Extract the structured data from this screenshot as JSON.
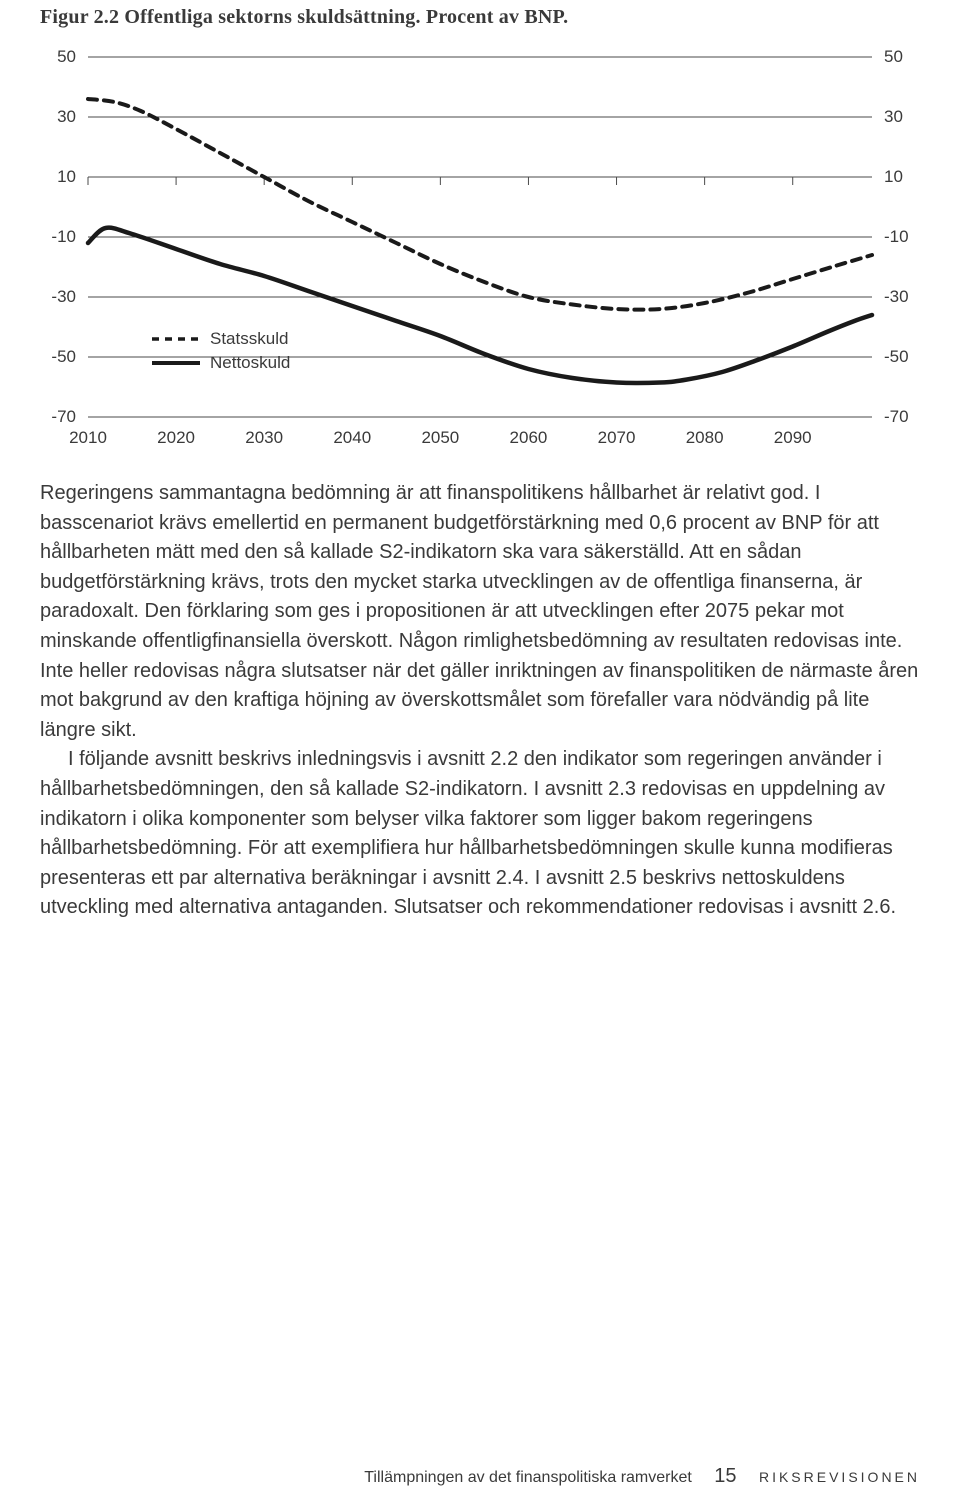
{
  "figure": {
    "title": "Figur 2.2 Offentliga sektorns skuldsättning. Procent av BNP.",
    "type": "line",
    "x_ticks": [
      2010,
      2020,
      2030,
      2040,
      2050,
      2060,
      2070,
      2080,
      2090
    ],
    "y_ticks": [
      50,
      30,
      10,
      -10,
      -30,
      -50,
      -70
    ],
    "xlim": [
      2010,
      2099
    ],
    "ylim": [
      -70,
      50
    ],
    "gridline_color": "#4a4a4a",
    "tick_color": "#4a4a4a",
    "text_color": "#3a3a3a",
    "background_color": "#ffffff",
    "tick_fontsize": 17,
    "tick_length": 8,
    "line_width_solid": 4.5,
    "line_width_dashed": 4,
    "dash_pattern": "9 7",
    "legend": {
      "items": [
        {
          "label": "Statsskuld",
          "style": "dashed",
          "color": "#1a1a1a"
        },
        {
          "label": "Nettoskuld",
          "style": "solid",
          "color": "#1a1a1a"
        }
      ],
      "fontsize": 17,
      "x": 112,
      "y_top": 290
    },
    "series": [
      {
        "name": "Statsskuld",
        "style": "dashed",
        "color": "#1a1a1a",
        "points": [
          [
            2010,
            36
          ],
          [
            2013,
            35
          ],
          [
            2016,
            32
          ],
          [
            2020,
            26
          ],
          [
            2025,
            18
          ],
          [
            2030,
            10
          ],
          [
            2035,
            2
          ],
          [
            2040,
            -5
          ],
          [
            2045,
            -12
          ],
          [
            2050,
            -19
          ],
          [
            2055,
            -25
          ],
          [
            2060,
            -30
          ],
          [
            2065,
            -32.5
          ],
          [
            2070,
            -34
          ],
          [
            2075,
            -34
          ],
          [
            2080,
            -32
          ],
          [
            2085,
            -28.5
          ],
          [
            2090,
            -24
          ],
          [
            2095,
            -19.5
          ],
          [
            2099,
            -16
          ]
        ]
      },
      {
        "name": "Nettoskuld",
        "style": "solid",
        "color": "#1a1a1a",
        "points": [
          [
            2010,
            -12
          ],
          [
            2012,
            -7
          ],
          [
            2015,
            -9
          ],
          [
            2020,
            -14
          ],
          [
            2025,
            -19
          ],
          [
            2030,
            -23
          ],
          [
            2035,
            -28
          ],
          [
            2040,
            -33
          ],
          [
            2045,
            -38
          ],
          [
            2050,
            -43
          ],
          [
            2055,
            -49
          ],
          [
            2060,
            -54
          ],
          [
            2065,
            -57
          ],
          [
            2070,
            -58.5
          ],
          [
            2075,
            -58.5
          ],
          [
            2078,
            -57.5
          ],
          [
            2082,
            -55
          ],
          [
            2086,
            -51
          ],
          [
            2090,
            -46.5
          ],
          [
            2094,
            -41.5
          ],
          [
            2097,
            -38
          ],
          [
            2099,
            -36
          ]
        ]
      }
    ]
  },
  "body": {
    "para1": "Regeringens sammantagna bedömning är att finanspolitikens hållbarhet är relativt god. I basscenariot krävs emellertid en permanent budgetförstärkning med 0,6 procent av BNP för att hållbarheten mätt med den så kallade S2-indikatorn ska vara säkerställd. Att en sådan budgetförstärkning krävs, trots den mycket starka utvecklingen av de offentliga finanserna, är paradoxalt. Den förklaring som ges i propositionen är att utvecklingen efter 2075 pekar mot minskande offentligfinansiella överskott. Någon rimlighetsbedömning av resultaten redovisas inte. Inte heller redovisas några slutsatser när det gäller inriktningen av finanspolitiken de närmaste åren mot bakgrund av den kraftiga höjning av överskottsmålet som förefaller vara nödvändig på lite längre sikt.",
    "para2": "I följande avsnitt beskrivs inledningsvis i avsnitt 2.2 den indikator som regeringen använder i hållbarhetsbedömningen, den så kallade S2-indikatorn. I avsnitt 2.3 redovisas en uppdelning av indikatorn i olika komponenter som belyser vilka faktorer som ligger bakom regeringens hållbarhetsbedömning. För att exemplifiera hur hållbarhetsbedömningen skulle kunna modifieras presenteras ett par alternativa beräkningar i avsnitt 2.4. I avsnitt 2.5 beskrivs nettoskuldens utveckling med alternativa antaganden. Slutsatser och rekommendationer redovisas i avsnitt 2.6."
  },
  "footer": {
    "title": "Tillämpningen av det finanspolitiska ramverket",
    "page_number": "15",
    "org": "RIKSREVISIONEN"
  }
}
